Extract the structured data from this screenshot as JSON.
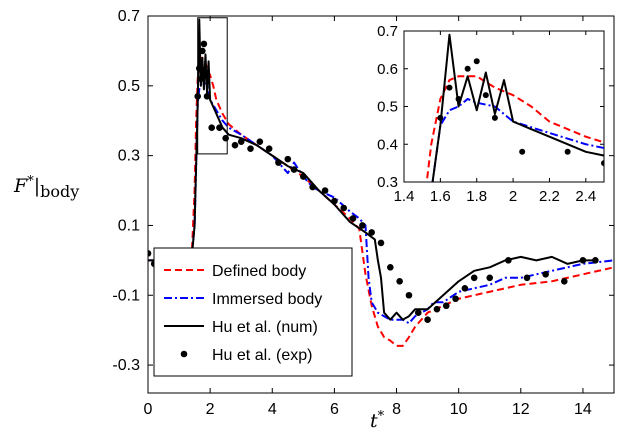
{
  "chart_data": {
    "type": "line",
    "xlabel": "t*",
    "ylabel": "F*|body",
    "xlim": [
      0,
      15
    ],
    "ylim": [
      -0.38,
      0.7
    ],
    "xticks": [
      "0",
      "2",
      "4",
      "6",
      "8",
      "10",
      "12",
      "14"
    ],
    "yticks": [
      "0.7",
      "0.5",
      "0.3",
      "0.1",
      "-0.1",
      "-0.3"
    ],
    "legend_position": "bottom-left",
    "series": [
      {
        "name": "Defined body",
        "color": "#ff0000",
        "style": "dashed",
        "x": [
          0,
          1.4,
          1.5,
          1.55,
          1.6,
          1.65,
          1.7,
          1.8,
          1.9,
          2.0,
          2.1,
          2.2,
          2.4,
          2.6,
          3.0,
          3.5,
          4.0,
          4.5,
          5.0,
          5.5,
          6.0,
          6.5,
          6.8,
          7.0,
          7.2,
          7.4,
          7.6,
          7.8,
          8.0,
          8.2,
          8.4,
          8.6,
          9.0,
          9.5,
          10.0,
          10.5,
          11.0,
          12.0,
          13.0,
          14.0,
          15.0
        ],
        "y": [
          0.0,
          0.0,
          0.2,
          0.4,
          0.52,
          0.57,
          0.58,
          0.58,
          0.55,
          0.53,
          0.5,
          0.46,
          0.42,
          0.39,
          0.36,
          0.33,
          0.3,
          0.27,
          0.24,
          0.2,
          0.16,
          0.12,
          0.09,
          -0.04,
          -0.13,
          -0.19,
          -0.22,
          -0.23,
          -0.245,
          -0.245,
          -0.22,
          -0.19,
          -0.15,
          -0.13,
          -0.11,
          -0.1,
          -0.09,
          -0.07,
          -0.06,
          -0.04,
          -0.02
        ]
      },
      {
        "name": "Immersed body",
        "color": "#0000ff",
        "style": "dashdot",
        "x": [
          0,
          1.4,
          1.5,
          1.6,
          1.65,
          1.7,
          1.75,
          1.8,
          1.9,
          2.0,
          2.2,
          2.4,
          2.6,
          3.0,
          3.5,
          4.0,
          4.3,
          4.5,
          4.7,
          5.0,
          5.3,
          5.5,
          6.0,
          6.5,
          6.8,
          7.0,
          7.1,
          7.2,
          7.4,
          7.6,
          7.8,
          8.0,
          8.2,
          8.4,
          8.6,
          9.0,
          9.2,
          9.5,
          10.0,
          10.5,
          11.0,
          11.5,
          12.0,
          12.5,
          13.0,
          13.5,
          14.0,
          14.5,
          15.0
        ],
        "y": [
          0.0,
          0.0,
          0.1,
          0.45,
          0.49,
          0.5,
          0.52,
          0.51,
          0.5,
          0.46,
          0.43,
          0.4,
          0.38,
          0.36,
          0.33,
          0.3,
          0.27,
          0.25,
          0.28,
          0.24,
          0.21,
          0.2,
          0.18,
          0.14,
          0.12,
          0.1,
          -0.05,
          -0.12,
          -0.15,
          -0.16,
          -0.17,
          -0.17,
          -0.17,
          -0.18,
          -0.16,
          -0.14,
          -0.12,
          -0.12,
          -0.09,
          -0.08,
          -0.07,
          -0.05,
          -0.05,
          -0.04,
          -0.03,
          -0.02,
          -0.01,
          -0.005,
          0.0
        ]
      },
      {
        "name": "Hu et al. (num)",
        "color": "#000000",
        "style": "solid",
        "x": [
          0,
          1.4,
          1.5,
          1.6,
          1.65,
          1.7,
          1.75,
          1.8,
          1.85,
          1.9,
          1.95,
          2.0,
          2.05,
          2.1,
          2.2,
          2.4,
          2.6,
          3.0,
          3.5,
          4.0,
          4.5,
          5.0,
          5.5,
          6.0,
          6.5,
          7.0,
          7.3,
          7.4,
          7.5,
          7.6,
          7.8,
          8.0,
          8.2,
          8.4,
          8.6,
          9.0,
          9.5,
          10.0,
          10.5,
          11.0,
          11.5,
          12.0,
          12.5,
          13.0,
          13.5,
          14.0,
          14.5
        ],
        "y": [
          0.0,
          0.0,
          0.1,
          0.45,
          0.69,
          0.5,
          0.58,
          0.49,
          0.59,
          0.48,
          0.57,
          0.46,
          0.45,
          0.44,
          0.42,
          0.38,
          0.36,
          0.35,
          0.33,
          0.3,
          0.27,
          0.25,
          0.2,
          0.16,
          0.11,
          0.08,
          0.06,
          0.0,
          -0.05,
          -0.15,
          -0.17,
          -0.15,
          -0.17,
          -0.16,
          -0.14,
          -0.14,
          -0.1,
          -0.06,
          -0.03,
          -0.02,
          0.0,
          0.01,
          0.0,
          0.01,
          -0.01,
          0.0,
          0.0
        ]
      },
      {
        "name": "Hu et al. (exp)",
        "color": "#000000",
        "style": "markers",
        "x": [
          0.0,
          0.2,
          0.4,
          0.8,
          1.2,
          1.6,
          1.65,
          1.7,
          1.75,
          1.8,
          1.85,
          1.9,
          2.05,
          2.3,
          2.5,
          2.8,
          3.0,
          3.3,
          3.6,
          3.9,
          4.2,
          4.5,
          4.7,
          5.0,
          5.3,
          5.7,
          6.0,
          6.3,
          6.6,
          6.9,
          7.2,
          7.5,
          7.8,
          8.1,
          8.4,
          8.7,
          9.0,
          9.3,
          9.6,
          9.9,
          10.2,
          10.5,
          11.0,
          11.6,
          12.2,
          12.8,
          13.4,
          14.0,
          14.4
        ],
        "y": [
          0.02,
          -0.01,
          0.0,
          -0.01,
          0.01,
          0.47,
          0.55,
          0.52,
          0.6,
          0.62,
          0.53,
          0.47,
          0.38,
          0.38,
          0.35,
          0.33,
          0.34,
          0.32,
          0.34,
          0.32,
          0.28,
          0.29,
          0.26,
          0.24,
          0.21,
          0.2,
          0.17,
          0.15,
          0.12,
          0.1,
          0.08,
          0.05,
          -0.02,
          -0.06,
          -0.1,
          -0.15,
          -0.17,
          -0.14,
          -0.13,
          -0.11,
          -0.08,
          -0.05,
          -0.05,
          0.0,
          -0.05,
          -0.04,
          -0.06,
          0.0,
          0.0
        ]
      }
    ],
    "inset": {
      "xlim": [
        1.4,
        2.5
      ],
      "ylim": [
        0.3,
        0.7
      ],
      "xticks": [
        "1.4",
        "1.6",
        "1.8",
        "2",
        "2.2",
        "2.4"
      ],
      "yticks": [
        "0.7",
        "0.6",
        "0.5",
        "0.4",
        "0.3"
      ]
    }
  }
}
